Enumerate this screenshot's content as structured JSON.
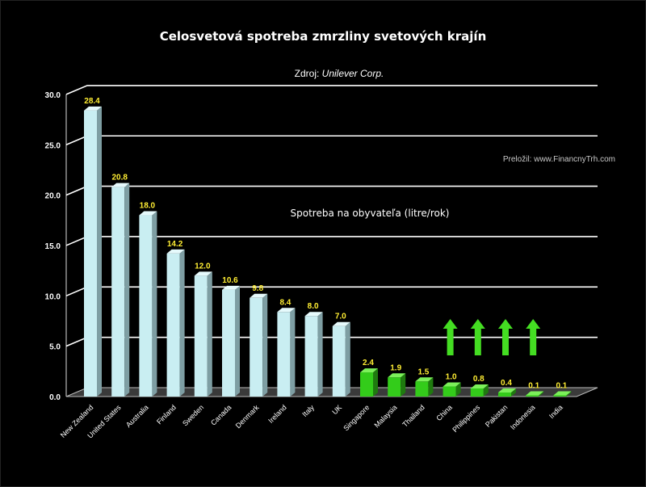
{
  "chart_data": {
    "type": "bar",
    "title": "Celosvetová spotreba zmrzliny svetových krajín",
    "source_prefix": "Zdroj: ",
    "source_name": "Unilever Corp.",
    "credit": "Preložil:  www.FinancnyTrh.com",
    "ylabel": "Spotreba na obyvateľa (litre/rok)",
    "xlabel": "",
    "ylim": [
      0,
      30
    ],
    "yticks": [
      "0.0",
      "5.0",
      "10.0",
      "15.0",
      "20.0",
      "25.0",
      "30.0"
    ],
    "grid": true,
    "categories": [
      "New Zealand",
      "United States",
      "Australia",
      "Finland",
      "Sweden",
      "Canada",
      "Denmark",
      "Ireland",
      "Italy",
      "UK",
      "Singapore",
      "Malaysia",
      "Thailand",
      "China",
      "Philippines",
      "Pakistan",
      "Indonesia",
      "India"
    ],
    "values": [
      28.4,
      20.8,
      18.0,
      14.2,
      12.0,
      10.6,
      9.8,
      8.4,
      8.0,
      7.0,
      2.4,
      1.9,
      1.5,
      1.0,
      0.8,
      0.4,
      0.1,
      0.1
    ],
    "value_labels": [
      "28.4",
      "20.8",
      "18.0",
      "14.2",
      "12.0",
      "10.6",
      "9.8",
      "8.4",
      "8.0",
      "7.0",
      "2.4",
      "1.9",
      "1.5",
      "1.0",
      "0.8",
      "0.4",
      "0.1",
      "0.1"
    ],
    "colors": {
      "developed_front": "#c9eef2",
      "developed_side": "#7e9ea3",
      "developed_top": "#e6fafc",
      "emerging_front": "#33cc1a",
      "emerging_side": "#1f7a0f",
      "emerging_top": "#7cf05a",
      "label": "#ffee33",
      "arrow": "#44dd22"
    },
    "annotations": {
      "growth_arrows_over": [
        "China",
        "Philippines",
        "Pakistan",
        "Indonesia"
      ]
    }
  }
}
